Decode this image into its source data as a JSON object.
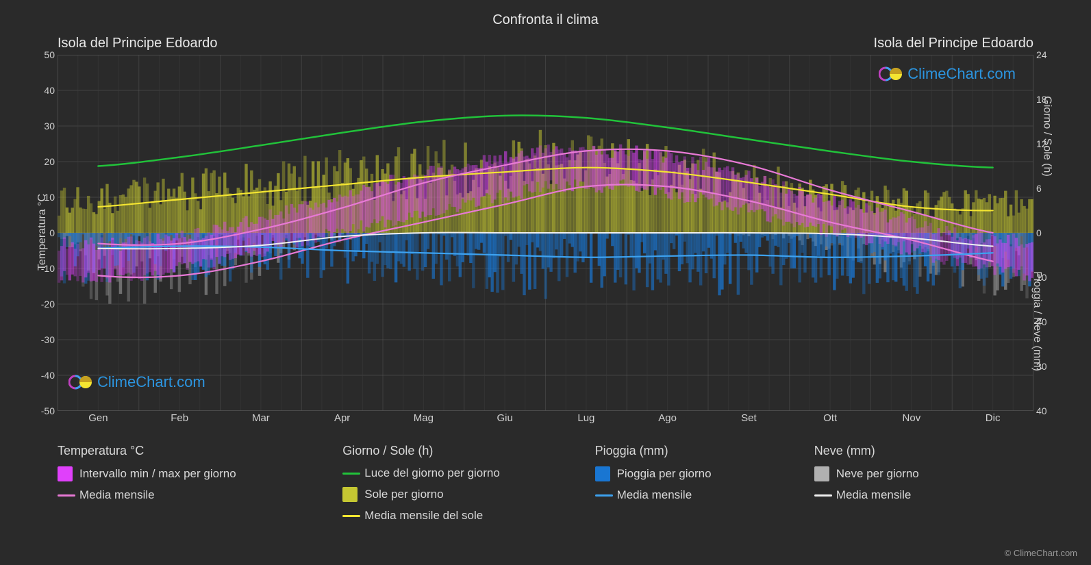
{
  "title": "Confronta il clima",
  "location_left": "Isola del Principe Edoardo",
  "location_right": "Isola del Principe Edoardo",
  "brand": "ClimeChart.com",
  "copyright": "© ClimeChart.com",
  "y_axis_left": {
    "label": "Temperatura °C",
    "min": -50,
    "max": 50,
    "step": 10
  },
  "y_axis_right_top": {
    "label": "Giorno / Sole (h)",
    "map_min_temp": 0,
    "map_max_temp": 50,
    "min": 0,
    "max": 24,
    "step": 6
  },
  "y_axis_right_bottom": {
    "label": "Pioggia / Neve (mm)",
    "map_min_temp": 0,
    "map_max_temp": -50,
    "min": 0,
    "max": 40,
    "step": 10
  },
  "months": [
    "Gen",
    "Feb",
    "Mar",
    "Apr",
    "Mag",
    "Giu",
    "Lug",
    "Ago",
    "Set",
    "Ott",
    "Nov",
    "Dic"
  ],
  "colors": {
    "background": "#2a2a2a",
    "grid_major": "#555555",
    "grid_minor": "#3a3a3a",
    "temp_range_fill": "#e040fb",
    "temp_mean_line": "#e879d6",
    "daylight_line": "#21c33a",
    "sun_fill": "#c5c732",
    "sun_mean_line": "#f4e531",
    "rain_fill": "#1976d2",
    "rain_mean_line": "#3da2f0",
    "snow_fill": "#b0b0b0",
    "snow_mean_line": "#f0f0f0",
    "text": "#d0d0d0",
    "brand": "#2c95e0"
  },
  "series": {
    "temp_min": [
      -12,
      -12,
      -8,
      -2,
      3,
      8,
      13,
      13,
      9,
      3,
      -2,
      -8
    ],
    "temp_max": [
      -3,
      -3,
      1,
      7,
      14,
      19,
      23,
      23,
      19,
      12,
      6,
      0
    ],
    "temp_mean": [
      -7,
      -7,
      -3,
      3,
      9,
      14,
      18,
      18,
      14,
      8,
      2,
      -4
    ],
    "temp_daily_spread": 4,
    "daylight_h": [
      9,
      10.2,
      11.8,
      13.5,
      15,
      15.8,
      15.5,
      14.2,
      12.6,
      11,
      9.6,
      8.8
    ],
    "sun_h": [
      3.5,
      4.5,
      5.5,
      6.5,
      7.5,
      8.2,
      8.8,
      8.2,
      6.8,
      5.2,
      3.5,
      3.0
    ],
    "sun_daily_max": [
      6,
      7.5,
      9,
      10.5,
      12,
      13.5,
      14,
      13.5,
      11.5,
      9,
      6.5,
      6
    ],
    "rain_mm_mean": [
      3.5,
      3,
      3.2,
      4,
      4.5,
      5,
      5.5,
      5.2,
      5,
      5.5,
      5.2,
      4.5
    ],
    "snow_mm_mean": [
      3.5,
      3.5,
      2.8,
      0.8,
      0,
      0,
      0,
      0,
      0,
      0.2,
      1.2,
      3.0
    ],
    "rain_daily_max": [
      12,
      11,
      11,
      12,
      13,
      14,
      15,
      14,
      14,
      15,
      15,
      13
    ],
    "snow_daily_max": [
      18,
      17,
      14,
      5,
      0,
      0,
      0,
      0,
      0,
      2,
      8,
      14
    ]
  },
  "legend": {
    "temp": {
      "title": "Temperatura °C",
      "range": "Intervallo min / max per giorno",
      "mean": "Media mensile"
    },
    "daysun": {
      "title": "Giorno / Sole (h)",
      "daylight": "Luce del giorno per giorno",
      "sun": "Sole per giorno",
      "sun_mean": "Media mensile del sole"
    },
    "rain": {
      "title": "Pioggia (mm)",
      "daily": "Pioggia per giorno",
      "mean": "Media mensile"
    },
    "snow": {
      "title": "Neve (mm)",
      "daily": "Neve per giorno",
      "mean": "Media mensile"
    }
  }
}
